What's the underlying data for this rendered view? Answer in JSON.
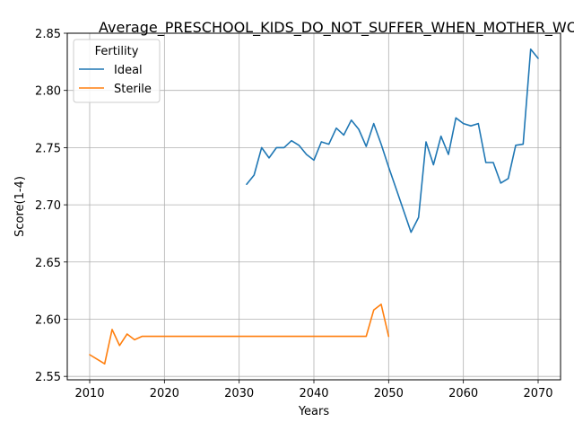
{
  "chart_data": {
    "type": "line",
    "title": "Average_PRESCHOOL_KIDS_DO_NOT_SUFFER_WHEN_MOTHER_WORKS_Male_",
    "xlabel": "Years",
    "ylabel": "Score(1-4)",
    "xlim": [
      2007,
      2073
    ],
    "ylim": [
      2.547,
      2.85
    ],
    "xticks": [
      2010,
      2020,
      2030,
      2040,
      2050,
      2060,
      2070
    ],
    "yticks": [
      2.55,
      2.6,
      2.65,
      2.7,
      2.75,
      2.8,
      2.85
    ],
    "ytick_labels": [
      "2.55",
      "2.60",
      "2.65",
      "2.70",
      "2.75",
      "2.80",
      "2.85"
    ],
    "grid": true,
    "legend": {
      "title": "Fertility",
      "placement": "top-left"
    },
    "series": [
      {
        "name": "Ideal",
        "color": "#1f77b4",
        "x": [
          2031,
          2032,
          2033,
          2034,
          2035,
          2036,
          2037,
          2038,
          2039,
          2040,
          2041,
          2042,
          2043,
          2044,
          2045,
          2046,
          2047,
          2048,
          2049,
          2050,
          2051,
          2052,
          2053,
          2054,
          2055,
          2056,
          2057,
          2058,
          2059,
          2060,
          2061,
          2062,
          2063,
          2064,
          2065,
          2066,
          2067,
          2068,
          2069,
          2070
        ],
        "y": [
          2.718,
          2.726,
          2.75,
          2.741,
          2.75,
          2.75,
          2.756,
          2.752,
          2.744,
          2.739,
          2.755,
          2.753,
          2.767,
          2.761,
          2.774,
          2.766,
          2.751,
          2.771,
          2.753,
          2.733,
          2.714,
          2.695,
          2.676,
          2.689,
          2.755,
          2.735,
          2.76,
          2.744,
          2.776,
          2.771,
          2.769,
          2.771,
          2.737,
          2.737,
          2.719,
          2.723,
          2.752,
          2.753,
          2.836,
          2.828
        ]
      },
      {
        "name": "Sterile",
        "color": "#ff7f0e",
        "x": [
          2010,
          2011,
          2012,
          2013,
          2014,
          2015,
          2016,
          2017,
          2018,
          2019,
          2020,
          2021,
          2022,
          2023,
          2024,
          2025,
          2026,
          2027,
          2028,
          2029,
          2030,
          2031,
          2032,
          2033,
          2034,
          2035,
          2036,
          2037,
          2038,
          2039,
          2040,
          2041,
          2042,
          2043,
          2044,
          2045,
          2046,
          2047,
          2048,
          2049,
          2050
        ],
        "y": [
          2.569,
          2.565,
          2.561,
          2.591,
          2.577,
          2.587,
          2.582,
          2.585,
          2.585,
          2.585,
          2.585,
          2.585,
          2.585,
          2.585,
          2.585,
          2.585,
          2.585,
          2.585,
          2.585,
          2.585,
          2.585,
          2.585,
          2.585,
          2.585,
          2.585,
          2.585,
          2.585,
          2.585,
          2.585,
          2.585,
          2.585,
          2.585,
          2.585,
          2.585,
          2.585,
          2.585,
          2.585,
          2.585,
          2.608,
          2.613,
          2.585
        ]
      }
    ]
  }
}
